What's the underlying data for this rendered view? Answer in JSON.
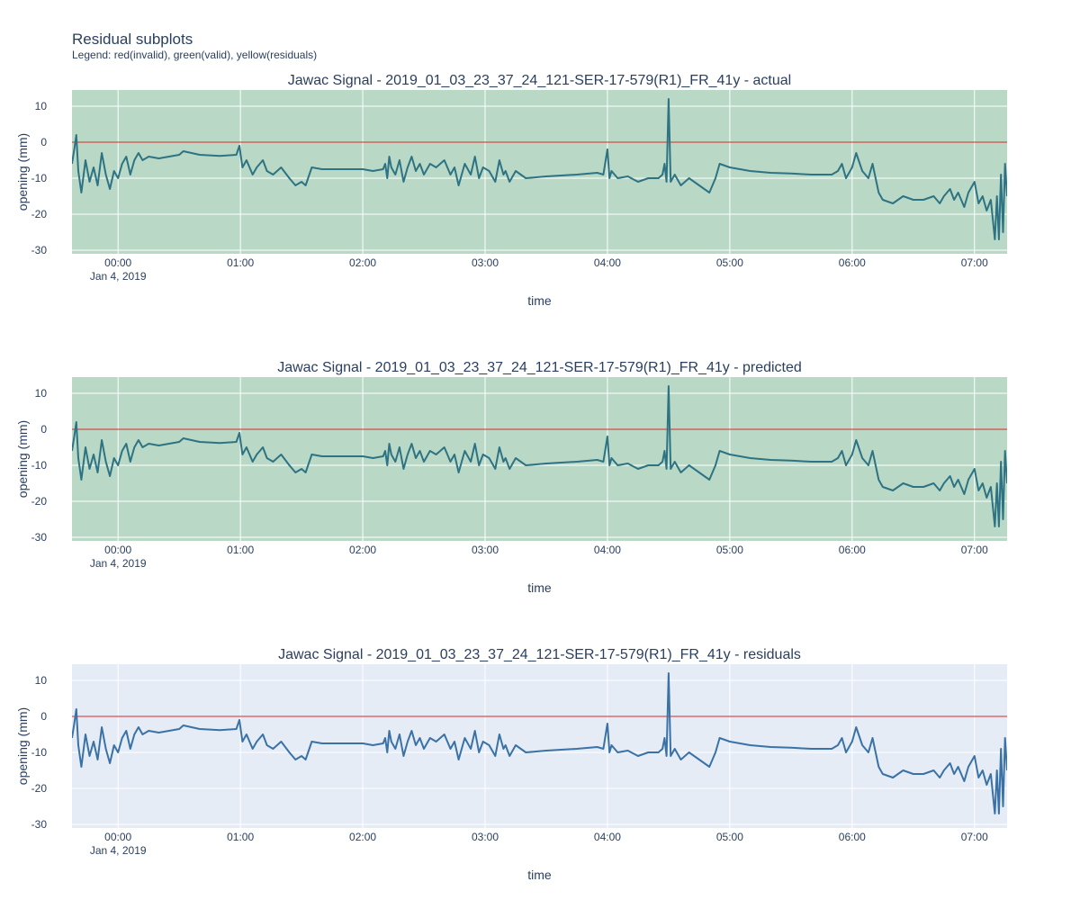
{
  "page": {
    "title": "Residual subplots",
    "subtitle": "Legend: red(invalid), green(valid), yellow(residuals)"
  },
  "colors": {
    "valid_background": "#b9d9c6",
    "default_background": "#e5ecf6",
    "zero_line": "#d62728",
    "signal_green_bg": "#2e7383",
    "signal_blue_bg": "#3a72a6",
    "grid": "#ffffff",
    "text": "#2a3f5f"
  },
  "chart_data": [
    {
      "type": "line",
      "title": "Jawac Signal - 2019_01_03_23_37_24_121-SER-17-579(R1)_FR_41y - actual",
      "xlabel": "time",
      "ylabel": "opening (mm)",
      "background": "valid",
      "x_tick_labels": [
        "00:00",
        "01:00",
        "02:00",
        "03:00",
        "04:00",
        "05:00",
        "06:00",
        "07:00"
      ],
      "x_tick_date_label": "Jan 4, 2019",
      "y_ticks": [
        10,
        0,
        -10,
        -20,
        -30
      ],
      "ylim": [
        -31,
        14.5
      ],
      "xlim": [
        "2019-01-03 23:37:24",
        "2019-01-04 07:16:00"
      ],
      "reference_line_y": 0
    },
    {
      "type": "line",
      "title": "Jawac Signal - 2019_01_03_23_37_24_121-SER-17-579(R1)_FR_41y - predicted",
      "xlabel": "time",
      "ylabel": "opening (mm)",
      "background": "valid",
      "x_tick_labels": [
        "00:00",
        "01:00",
        "02:00",
        "03:00",
        "04:00",
        "05:00",
        "06:00",
        "07:00"
      ],
      "x_tick_date_label": "Jan 4, 2019",
      "y_ticks": [
        10,
        0,
        -10,
        -20,
        -30
      ],
      "ylim": [
        -31,
        14.5
      ],
      "xlim": [
        "2019-01-03 23:37:24",
        "2019-01-04 07:16:00"
      ],
      "reference_line_y": 0
    },
    {
      "type": "line",
      "title": "Jawac Signal - 2019_01_03_23_37_24_121-SER-17-579(R1)_FR_41y - residuals",
      "xlabel": "time",
      "ylabel": "opening (mm)",
      "background": "default",
      "x_tick_labels": [
        "00:00",
        "01:00",
        "02:00",
        "03:00",
        "04:00",
        "05:00",
        "06:00",
        "07:00"
      ],
      "x_tick_date_label": "Jan 4, 2019",
      "y_ticks": [
        10,
        0,
        -10,
        -20,
        -30
      ],
      "ylim": [
        -31,
        14.5
      ],
      "xlim": [
        "2019-01-03 23:37:24",
        "2019-01-04 07:16:00"
      ],
      "reference_line_y": 0
    }
  ],
  "signal": {
    "x": [
      "2019-01-03 23:37:24",
      "2019-01-03 23:38:30",
      "2019-01-03 23:39:30",
      "2019-01-03 23:40:30",
      "2019-01-03 23:42:00",
      "2019-01-03 23:44:00",
      "2019-01-03 23:46:00",
      "2019-01-03 23:48:00",
      "2019-01-03 23:50:00",
      "2019-01-03 23:52:00",
      "2019-01-03 23:54:00",
      "2019-01-03 23:56:00",
      "2019-01-03 23:58:00",
      "2019-01-04 00:00:00",
      "2019-01-04 00:02:00",
      "2019-01-04 00:04:00",
      "2019-01-04 00:06:00",
      "2019-01-04 00:08:00",
      "2019-01-04 00:10:00",
      "2019-01-04 00:12:00",
      "2019-01-04 00:15:00",
      "2019-01-04 00:20:00",
      "2019-01-04 00:25:00",
      "2019-01-04 00:30:00",
      "2019-01-04 00:32:00",
      "2019-01-04 00:40:00",
      "2019-01-04 00:50:00",
      "2019-01-04 00:58:00",
      "2019-01-04 00:59:30",
      "2019-01-04 01:01:00",
      "2019-01-04 01:03:00",
      "2019-01-04 01:06:00",
      "2019-01-04 01:08:00",
      "2019-01-04 01:11:00",
      "2019-01-04 01:13:00",
      "2019-01-04 01:16:00",
      "2019-01-04 01:20:00",
      "2019-01-04 01:24:00",
      "2019-01-04 01:27:00",
      "2019-01-04 01:30:00",
      "2019-01-04 01:32:00",
      "2019-01-04 01:35:00",
      "2019-01-04 01:40:00",
      "2019-01-04 01:50:00",
      "2019-01-04 02:00:00",
      "2019-01-04 02:05:00",
      "2019-01-04 02:10:00",
      "2019-01-04 02:11:00",
      "2019-01-04 02:12:00",
      "2019-01-04 02:13:00",
      "2019-01-04 02:14:00",
      "2019-01-04 02:16:00",
      "2019-01-04 02:18:00",
      "2019-01-04 02:20:00",
      "2019-01-04 02:22:00",
      "2019-01-04 02:24:00",
      "2019-01-04 02:26:00",
      "2019-01-04 02:28:00",
      "2019-01-04 02:30:00",
      "2019-01-04 02:33:00",
      "2019-01-04 02:36:00",
      "2019-01-04 02:40:00",
      "2019-01-04 02:43:00",
      "2019-01-04 02:45:00",
      "2019-01-04 02:47:00",
      "2019-01-04 02:50:00",
      "2019-01-04 02:53:00",
      "2019-01-04 02:55:00",
      "2019-01-04 02:57:00",
      "2019-01-04 02:59:00",
      "2019-01-04 03:02:00",
      "2019-01-04 03:05:00",
      "2019-01-04 03:07:00",
      "2019-01-04 03:09:00",
      "2019-01-04 03:10:00",
      "2019-01-04 03:12:00",
      "2019-01-04 03:15:00",
      "2019-01-04 03:20:00",
      "2019-01-04 03:30:00",
      "2019-01-04 03:45:00",
      "2019-01-04 03:55:00",
      "2019-01-04 03:58:00",
      "2019-01-04 04:00:00",
      "2019-01-04 04:01:00",
      "2019-01-04 04:02:00",
      "2019-01-04 04:05:00",
      "2019-01-04 04:10:00",
      "2019-01-04 04:15:00",
      "2019-01-04 04:20:00",
      "2019-01-04 04:25:00",
      "2019-01-04 04:27:00",
      "2019-01-04 04:28:00",
      "2019-01-04 04:29:00",
      "2019-01-04 04:30:00",
      "2019-01-04 04:31:00",
      "2019-01-04 04:33:00",
      "2019-01-04 04:36:00",
      "2019-01-04 04:40:00",
      "2019-01-04 04:45:00",
      "2019-01-04 04:50:00",
      "2019-01-04 04:53:00",
      "2019-01-04 04:55:00",
      "2019-01-04 05:00:00",
      "2019-01-04 05:10:00",
      "2019-01-04 05:20:00",
      "2019-01-04 05:30:00",
      "2019-01-04 05:40:00",
      "2019-01-04 05:50:00",
      "2019-01-04 05:53:00",
      "2019-01-04 05:55:00",
      "2019-01-04 05:57:00",
      "2019-01-04 06:00:00",
      "2019-01-04 06:02:00",
      "2019-01-04 06:05:00",
      "2019-01-04 06:08:00",
      "2019-01-04 06:10:00",
      "2019-01-04 06:13:00",
      "2019-01-04 06:15:00",
      "2019-01-04 06:20:00",
      "2019-01-04 06:25:00",
      "2019-01-04 06:30:00",
      "2019-01-04 06:35:00",
      "2019-01-04 06:40:00",
      "2019-01-04 06:43:00",
      "2019-01-04 06:45:00",
      "2019-01-04 06:48:00",
      "2019-01-04 06:50:00",
      "2019-01-04 06:52:00",
      "2019-01-04 06:55:00",
      "2019-01-04 06:57:00",
      "2019-01-04 07:00:00",
      "2019-01-04 07:02:00",
      "2019-01-04 07:04:00",
      "2019-01-04 07:06:00",
      "2019-01-04 07:08:00",
      "2019-01-04 07:10:00",
      "2019-01-04 07:11:00",
      "2019-01-04 07:12:00",
      "2019-01-04 07:13:00",
      "2019-01-04 07:14:00",
      "2019-01-04 07:15:00",
      "2019-01-04 07:16:00"
    ],
    "y": [
      -6,
      -2,
      2,
      -8,
      -14,
      -5,
      -11,
      -7,
      -12,
      -3,
      -9,
      -13,
      -8,
      -10,
      -6,
      -4,
      -9,
      -5,
      -3,
      -5,
      -4,
      -4.5,
      -4,
      -3.5,
      -2.5,
      -3.5,
      -3.8,
      -3.5,
      -1,
      -7,
      -5,
      -9,
      -7,
      -5,
      -8,
      -9,
      -7,
      -10,
      -12,
      -11,
      -12,
      -7,
      -7.5,
      -7.5,
      -7.5,
      -8,
      -7.5,
      -6,
      -10,
      -4,
      -7,
      -9,
      -5,
      -11,
      -7,
      -4,
      -8,
      -6,
      -9,
      -6,
      -7,
      -5,
      -9,
      -7,
      -12,
      -6,
      -9,
      -4,
      -10,
      -7,
      -8,
      -11,
      -5,
      -9,
      -8,
      -11,
      -8,
      -10,
      -9.5,
      -9,
      -8.5,
      -9,
      -2,
      -10,
      -8,
      -10,
      -9.5,
      -11,
      -10,
      -10,
      -9,
      -6,
      -11,
      12,
      -11,
      -9,
      -12,
      -10,
      -12,
      -14,
      -10,
      -6,
      -7,
      -8,
      -8.5,
      -8.7,
      -9,
      -9,
      -8,
      -6,
      -10,
      -7,
      -3,
      -8,
      -10,
      -6,
      -14,
      -16,
      -17,
      -15,
      -16,
      -16,
      -15,
      -17,
      -15,
      -13,
      -16,
      -14,
      -18,
      -14,
      -11,
      -17,
      -15,
      -19,
      -16,
      -27,
      -15,
      -27,
      -9,
      -25,
      -6,
      -15
    ]
  }
}
